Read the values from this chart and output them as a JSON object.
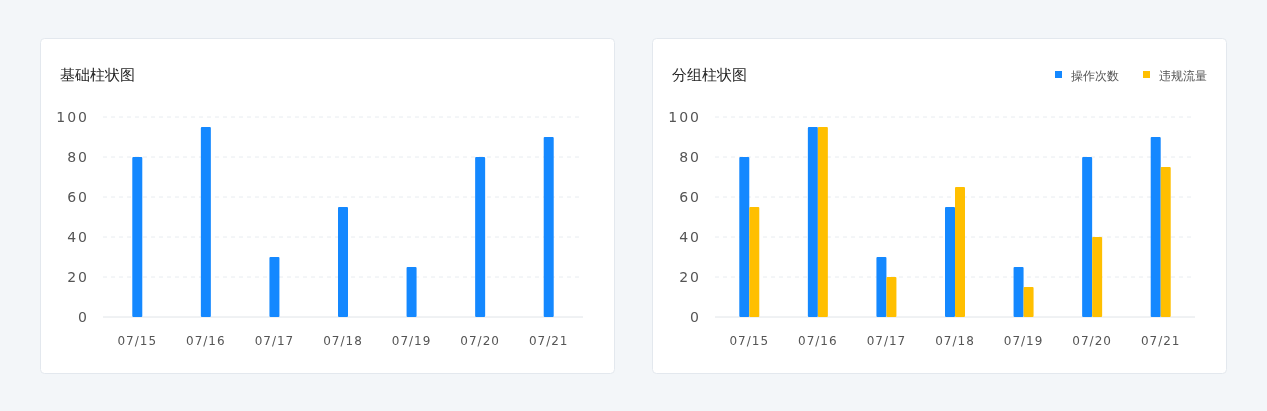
{
  "chart_data": [
    {
      "type": "bar",
      "title": "基础柱状图",
      "categories": [
        "07/15",
        "07/16",
        "07/17",
        "07/18",
        "07/19",
        "07/20",
        "07/21"
      ],
      "values": [
        80,
        95,
        30,
        55,
        25,
        80,
        90
      ],
      "color": "#1488ff",
      "ylim": [
        0,
        100
      ],
      "yticks": [
        0,
        20,
        40,
        60,
        80,
        100
      ],
      "grid": "y"
    },
    {
      "type": "bar",
      "title": "分组柱状图",
      "categories": [
        "07/15",
        "07/16",
        "07/17",
        "07/18",
        "07/19",
        "07/20",
        "07/21"
      ],
      "series": [
        {
          "name": "操作次数",
          "color": "#1488ff",
          "values": [
            80,
            95,
            30,
            55,
            25,
            80,
            90
          ]
        },
        {
          "name": "违规流量",
          "color": "#ffbf00",
          "values": [
            55,
            95,
            20,
            65,
            15,
            40,
            75
          ]
        }
      ],
      "ylim": [
        0,
        100
      ],
      "yticks": [
        0,
        20,
        40,
        60,
        80,
        100
      ],
      "grid": "y",
      "legend": "top right"
    }
  ]
}
